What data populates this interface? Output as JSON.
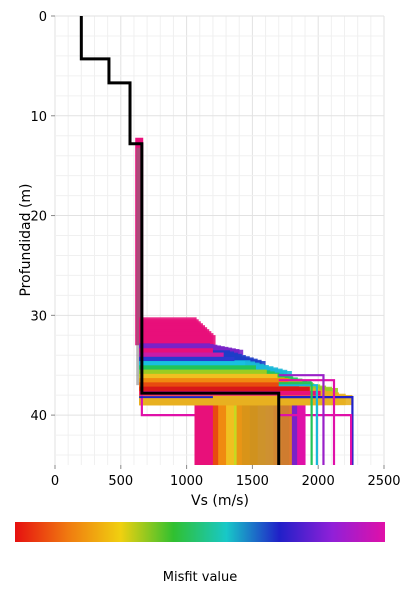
{
  "chart_data": {
    "type": "line",
    "xlabel": "Vs (m/s)",
    "ylabel": "Profundidad (m)",
    "xlim": [
      0,
      2500
    ],
    "ylim": [
      0,
      45
    ],
    "y_inverted": true,
    "x_ticks": [
      "0",
      "500",
      "1000",
      "1500",
      "2000",
      "2500"
    ],
    "x_tick_values": [
      0,
      500,
      1000,
      1500,
      2000,
      2500
    ],
    "y_ticks": [
      "0",
      "10",
      "20",
      "30",
      "40"
    ],
    "y_tick_values": [
      0,
      10,
      20,
      30,
      40
    ],
    "grid": true,
    "best_model": {
      "color": "#000000",
      "vs": [
        200,
        200,
        410,
        410,
        570,
        570,
        660,
        660,
        1700,
        1700
      ],
      "depth": [
        0,
        4.3,
        4.3,
        6.7,
        6.7,
        12.8,
        12.8,
        37.8,
        37.8,
        45
      ]
    },
    "profile_ensemble": {
      "description_color_scale": "misfit (red = low, magenta = high)",
      "shallow_vs": 640,
      "deep_bands": [
        {
          "depth_top": 30.2,
          "depth_bottom": 33.5,
          "vs_left": 1060,
          "vs_right": 1220,
          "color": "#e8107a"
        },
        {
          "depth_top": 32.8,
          "depth_bottom": 34.0,
          "vs_left": 1150,
          "vs_right": 1430,
          "color": "#7a22c8"
        },
        {
          "depth_top": 33.5,
          "depth_bottom": 35.5,
          "vs_left": 1300,
          "vs_right": 1600,
          "color": "#1d3ec8"
        },
        {
          "depth_top": 34.5,
          "depth_bottom": 36.5,
          "vs_left": 1450,
          "vs_right": 1800,
          "color": "#18b8d8"
        },
        {
          "depth_top": 35.5,
          "depth_bottom": 37.5,
          "vs_left": 1600,
          "vs_right": 1950,
          "color": "#22c45a"
        },
        {
          "depth_top": 36.2,
          "depth_bottom": 38.2,
          "vs_left": 1700,
          "vs_right": 2150,
          "color": "#9bcc22"
        },
        {
          "depth_top": 36.8,
          "depth_bottom": 39.0,
          "vs_left": 1750,
          "vs_right": 2260,
          "color": "#e8b020"
        }
      ]
    },
    "colorbar": {
      "label": "Misfit value",
      "colors": [
        "#e61010",
        "#f07a10",
        "#f0d010",
        "#30c030",
        "#18c8c8",
        "#2020c8",
        "#9020d8",
        "#e010a8"
      ]
    }
  }
}
